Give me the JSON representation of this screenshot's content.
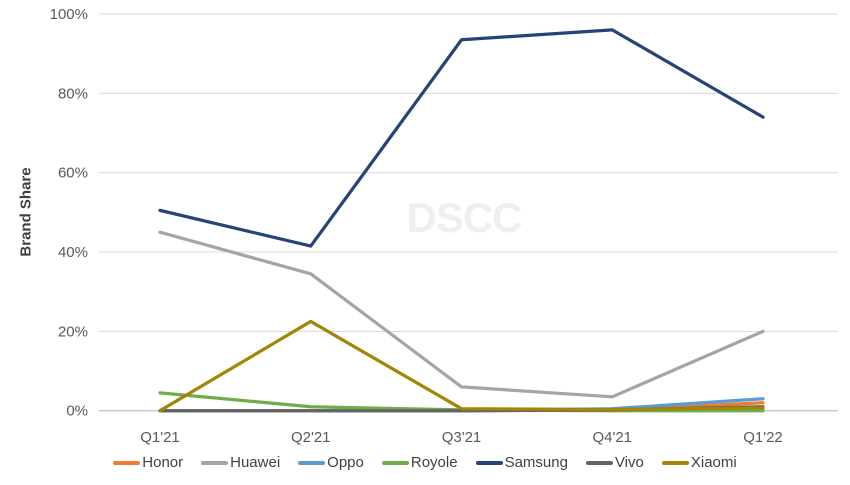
{
  "chart_data": {
    "type": "line",
    "ylabel": "Brand Share",
    "xlabel": "",
    "watermark": "DSCC",
    "categories": [
      "Q1'21",
      "Q2'21",
      "Q3'21",
      "Q4'21",
      "Q1'22"
    ],
    "series": [
      {
        "name": "Honor",
        "color": "#ED7D31",
        "values": [
          0,
          0,
          0,
          0.2,
          2
        ]
      },
      {
        "name": "Huawei",
        "color": "#A5A5A5",
        "values": [
          45,
          34.5,
          6,
          3.5,
          20
        ]
      },
      {
        "name": "Oppo",
        "color": "#5B9BD5",
        "values": [
          0,
          0,
          0,
          0.5,
          3
        ]
      },
      {
        "name": "Royole",
        "color": "#70AD47",
        "values": [
          4.5,
          1,
          0.2,
          0,
          0
        ]
      },
      {
        "name": "Samsung",
        "color": "#264478",
        "values": [
          50.5,
          41.5,
          93.5,
          96,
          74
        ]
      },
      {
        "name": "Vivo",
        "color": "#636363",
        "values": [
          0,
          0,
          0,
          0.2,
          1
        ]
      },
      {
        "name": "Xiaomi",
        "color": "#A38508",
        "values": [
          0,
          22.5,
          0.5,
          0.3,
          0.7
        ]
      }
    ],
    "ylim": [
      0,
      100
    ],
    "ytick_step": 20,
    "ytick_labels": [
      "0%",
      "20%",
      "40%",
      "60%",
      "80%",
      "100%"
    ],
    "grid": "horizontal",
    "legend_position": "bottom"
  }
}
